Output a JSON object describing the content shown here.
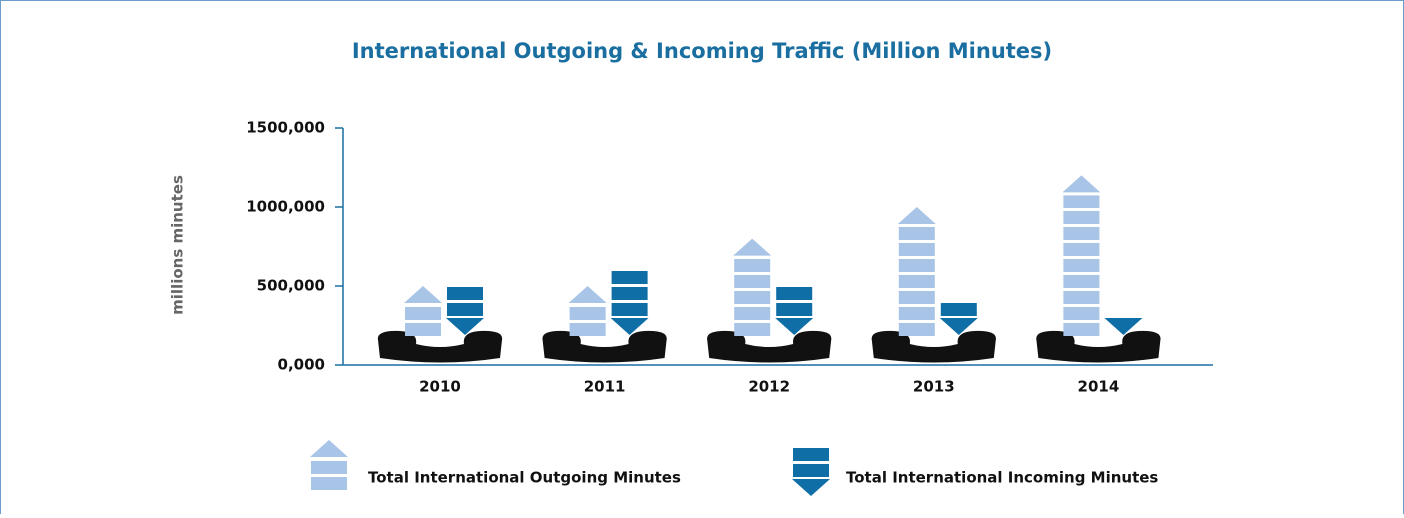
{
  "chart_data": {
    "type": "pictograph-bar",
    "title": "International Outgoing & Incoming Traffic (Million Minutes)",
    "y_label": "millions minutes",
    "categories": [
      "2010",
      "2011",
      "2012",
      "2013",
      "2014"
    ],
    "series": [
      {
        "name": "Total International Outgoing Minutes",
        "color": "#a8c4e6",
        "values": [
          500000,
          500000,
          800000,
          1000000,
          1200000
        ]
      },
      {
        "name": "Total International Incoming Minutes",
        "color": "#0e6ea5",
        "values": [
          500000,
          600000,
          500000,
          400000,
          300000
        ]
      }
    ],
    "ylim": [
      0,
      1500000
    ],
    "yticks": [
      {
        "value": 0,
        "label": "0,000"
      },
      {
        "value": 500000,
        "label": "500,000"
      },
      {
        "value": 1000000,
        "label": "1000,000"
      },
      {
        "value": 1500000,
        "label": "1500,000"
      }
    ]
  }
}
